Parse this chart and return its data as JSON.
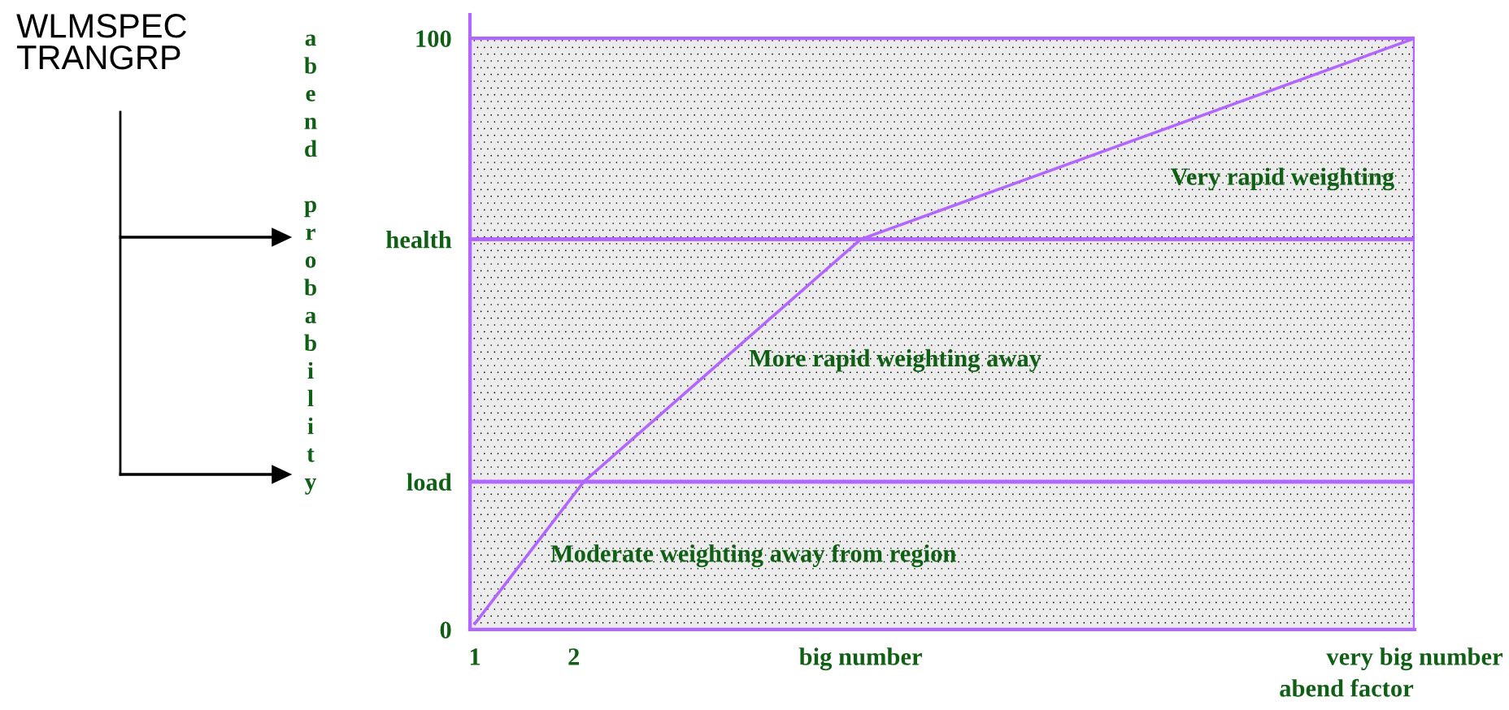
{
  "chart_data": {
    "type": "line",
    "xlabel": "abend factor",
    "ylabel": "abend probability",
    "x": [
      1,
      2.1,
      4.9,
      10.5
    ],
    "series": [
      {
        "color": "#b266ff",
        "values": [
          1,
          25,
          66,
          100
        ]
      }
    ],
    "xlim": [
      0.95,
      10.5
    ],
    "ylim": [
      0,
      104
    ],
    "xticks": [
      1,
      2,
      {
        "value": 4.9,
        "label": "big number"
      },
      {
        "value": 10.5,
        "label": "very big number"
      }
    ],
    "yticks": [
      0,
      {
        "value": 25,
        "label": "load"
      },
      {
        "value": 66,
        "label": "health"
      },
      100
    ],
    "bands": [
      {
        "axis": "y",
        "from": 0,
        "to": 25,
        "label": "Moderate weighting away from region",
        "color": "#ececec"
      },
      {
        "axis": "y",
        "from": 25,
        "to": 66,
        "label": "More rapid weighting away",
        "color": "#ececec"
      },
      {
        "axis": "y",
        "from": 66,
        "to": 100,
        "label": "Very rapid weighting",
        "color": "#ececec"
      }
    ],
    "annotations": [
      "WLMSPEC\nTRANGRP"
    ],
    "grid": false,
    "legend": false,
    "marker": "none",
    "line_style": "solid"
  }
}
